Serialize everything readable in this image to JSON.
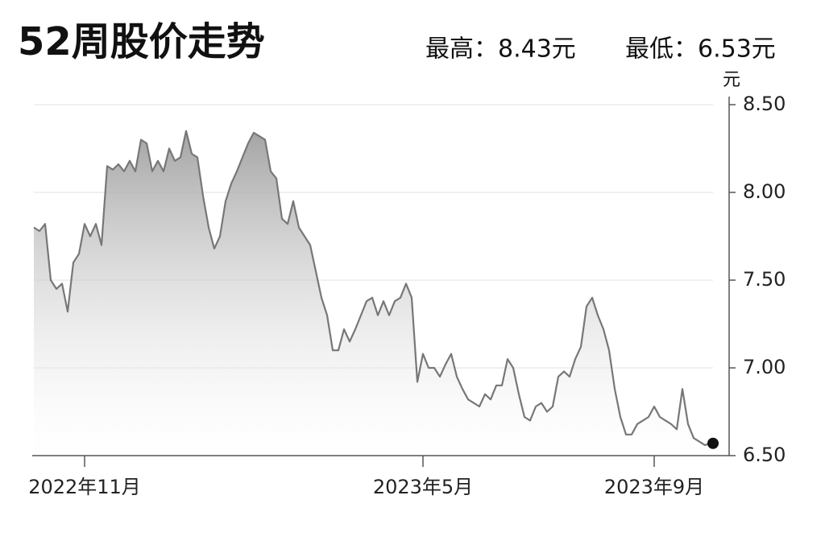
{
  "chart_data": {
    "type": "area",
    "title": "52周股价走势",
    "high_label": "最高：8.43元",
    "low_label": "最低：6.53元",
    "y_unit": "元",
    "color": "#777777",
    "fill_color": "#9a9a9a",
    "grid": true,
    "ylim": [
      6.5,
      8.5
    ],
    "yticks": [
      {
        "value": 6.5,
        "label": "6.50"
      },
      {
        "value": 7,
        "label": "7.00"
      },
      {
        "value": 7.5,
        "label": "7.50"
      },
      {
        "value": 8,
        "label": "8.00"
      },
      {
        "value": 8.5,
        "label": "8.50"
      }
    ],
    "categories": [
      null,
      null,
      null,
      null,
      null,
      null,
      null,
      null,
      null,
      "2022年11月",
      null,
      null,
      null,
      null,
      null,
      null,
      null,
      null,
      null,
      null,
      null,
      null,
      null,
      null,
      null,
      null,
      null,
      null,
      null,
      null,
      null,
      null,
      null,
      null,
      null,
      null,
      null,
      null,
      null,
      null,
      null,
      null,
      null,
      null,
      null,
      null,
      null,
      null,
      null,
      null,
      null,
      null,
      null,
      null,
      null,
      null,
      null,
      null,
      null,
      null,
      null,
      null,
      null,
      null,
      null,
      null,
      null,
      null,
      null,
      "2023年5月",
      null,
      null,
      null,
      null,
      null,
      null,
      null,
      null,
      null,
      null,
      null,
      null,
      null,
      null,
      null,
      null,
      null,
      null,
      null,
      null,
      null,
      null,
      null,
      null,
      null,
      null,
      null,
      null,
      null,
      null,
      null,
      null,
      null,
      null,
      null,
      null,
      null,
      null,
      null,
      null,
      "2023年9月",
      null,
      null,
      null,
      null,
      null,
      null,
      null,
      null,
      null,
      null
    ],
    "values": [
      7.8,
      7.78,
      7.82,
      7.5,
      7.45,
      7.48,
      7.32,
      7.6,
      7.65,
      7.82,
      7.75,
      7.82,
      7.7,
      8.15,
      8.13,
      8.16,
      8.12,
      8.18,
      8.12,
      8.3,
      8.28,
      8.12,
      8.18,
      8.12,
      8.25,
      8.18,
      8.2,
      8.35,
      8.22,
      8.2,
      7.98,
      7.8,
      7.68,
      7.75,
      7.95,
      8.05,
      8.12,
      8.2,
      8.28,
      8.34,
      8.32,
      8.3,
      8.12,
      8.08,
      7.85,
      7.82,
      7.95,
      7.8,
      7.75,
      7.7,
      7.55,
      7.4,
      7.3,
      7.1,
      7.1,
      7.22,
      7.15,
      7.22,
      7.3,
      7.38,
      7.4,
      7.3,
      7.38,
      7.3,
      7.38,
      7.4,
      7.48,
      7.4,
      6.92,
      7.08,
      7.0,
      7.0,
      6.95,
      7.02,
      7.08,
      6.95,
      6.88,
      6.82,
      6.8,
      6.78,
      6.85,
      6.82,
      6.9,
      6.9,
      7.05,
      7.0,
      6.85,
      6.72,
      6.7,
      6.78,
      6.8,
      6.75,
      6.78,
      6.95,
      6.98,
      6.95,
      7.05,
      7.12,
      7.35,
      7.4,
      7.3,
      7.22,
      7.1,
      6.88,
      6.72,
      6.62,
      6.62,
      6.68,
      6.7,
      6.72,
      6.78,
      6.72,
      6.7,
      6.68,
      6.65,
      6.88,
      6.68,
      6.6,
      6.58,
      6.56,
      6.57
    ]
  }
}
